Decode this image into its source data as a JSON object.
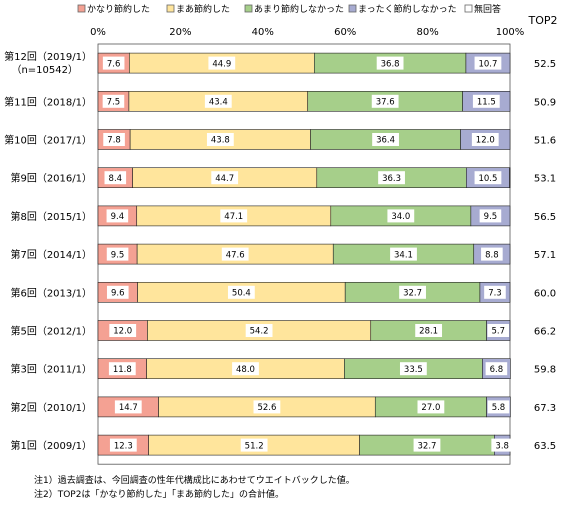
{
  "chart_data": {
    "type": "bar",
    "stacked": true,
    "orientation": "horizontal",
    "percent": true,
    "xlim": [
      0,
      100
    ],
    "x_ticks": [
      "0%",
      "20%",
      "40%",
      "60%",
      "80%",
      "100%"
    ],
    "right_column_header": "TOP2",
    "legend_position": "top",
    "series": [
      {
        "name": "かなり節約した",
        "color": "#f4a193"
      },
      {
        "name": "まあ節約した",
        "color": "#ffe59c"
      },
      {
        "name": "あまり節約しなかった",
        "color": "#a6cf8a"
      },
      {
        "name": "まったく節約しなかった",
        "color": "#a7abd1"
      },
      {
        "name": "無回答",
        "color": "#ffffff"
      }
    ],
    "rows": [
      {
        "label": "第12回（2019/1）",
        "sublabel": "（n=10542）",
        "values": [
          7.6,
          44.9,
          36.8,
          10.7,
          0.0
        ],
        "top2": "52.5"
      },
      {
        "label": "第11回（2018/1）",
        "values": [
          7.5,
          43.4,
          37.6,
          11.5,
          0.0
        ],
        "top2": "50.9"
      },
      {
        "label": "第10回（2017/1）",
        "values": [
          7.8,
          43.8,
          36.4,
          12.0,
          0.0
        ],
        "top2": "51.6"
      },
      {
        "label": "第9回（2016/1）",
        "values": [
          8.4,
          44.7,
          36.3,
          10.5,
          0.1
        ],
        "top2": "53.1"
      },
      {
        "label": "第8回（2015/1）",
        "values": [
          9.4,
          47.1,
          34.0,
          9.5,
          0.0
        ],
        "top2": "56.5"
      },
      {
        "label": "第7回（2014/1）",
        "values": [
          9.5,
          47.6,
          34.1,
          8.8,
          0.0
        ],
        "top2": "57.1"
      },
      {
        "label": "第6回（2013/1）",
        "values": [
          9.6,
          50.4,
          32.7,
          7.3,
          0.0
        ],
        "top2": "60.0"
      },
      {
        "label": "第5回（2012/1）",
        "values": [
          12.0,
          54.2,
          28.1,
          5.7,
          0.0
        ],
        "top2": "66.2"
      },
      {
        "label": "第3回（2011/1）",
        "values": [
          11.8,
          48.0,
          33.5,
          6.8,
          0.0
        ],
        "top2": "59.8"
      },
      {
        "label": "第2回（2010/1）",
        "values": [
          14.7,
          52.6,
          27.0,
          5.8,
          0.0
        ],
        "top2": "67.3"
      },
      {
        "label": "第1回（2009/1）",
        "values": [
          12.3,
          51.2,
          32.7,
          3.8,
          0.0
        ],
        "top2": "63.5"
      }
    ],
    "value_labels": [
      [
        "7.6",
        "44.9",
        "36.8",
        "10.7"
      ],
      [
        "7.5",
        "43.4",
        "37.6",
        "11.5"
      ],
      [
        "7.8",
        "43.8",
        "36.4",
        "12.0"
      ],
      [
        "8.4",
        "44.7",
        "36.3",
        "10.5"
      ],
      [
        "9.4",
        "47.1",
        "34.0",
        "9.5"
      ],
      [
        "9.5",
        "47.6",
        "34.1",
        "8.8"
      ],
      [
        "9.6",
        "50.4",
        "32.7",
        "7.3"
      ],
      [
        "12.0",
        "54.2",
        "28.1",
        "5.7"
      ],
      [
        "11.8",
        "48.0",
        "33.5",
        "6.8"
      ],
      [
        "14.7",
        "52.6",
        "27.0",
        "5.8"
      ],
      [
        "12.3",
        "51.2",
        "32.7",
        "3.8"
      ]
    ]
  },
  "notes": [
    "注1）過去調査は、今回調査の性年代構成比にあわせてウエイトバックした値。",
    "注2）TOP2は「かなり節約した」「まあ節約した」の合計値。"
  ]
}
